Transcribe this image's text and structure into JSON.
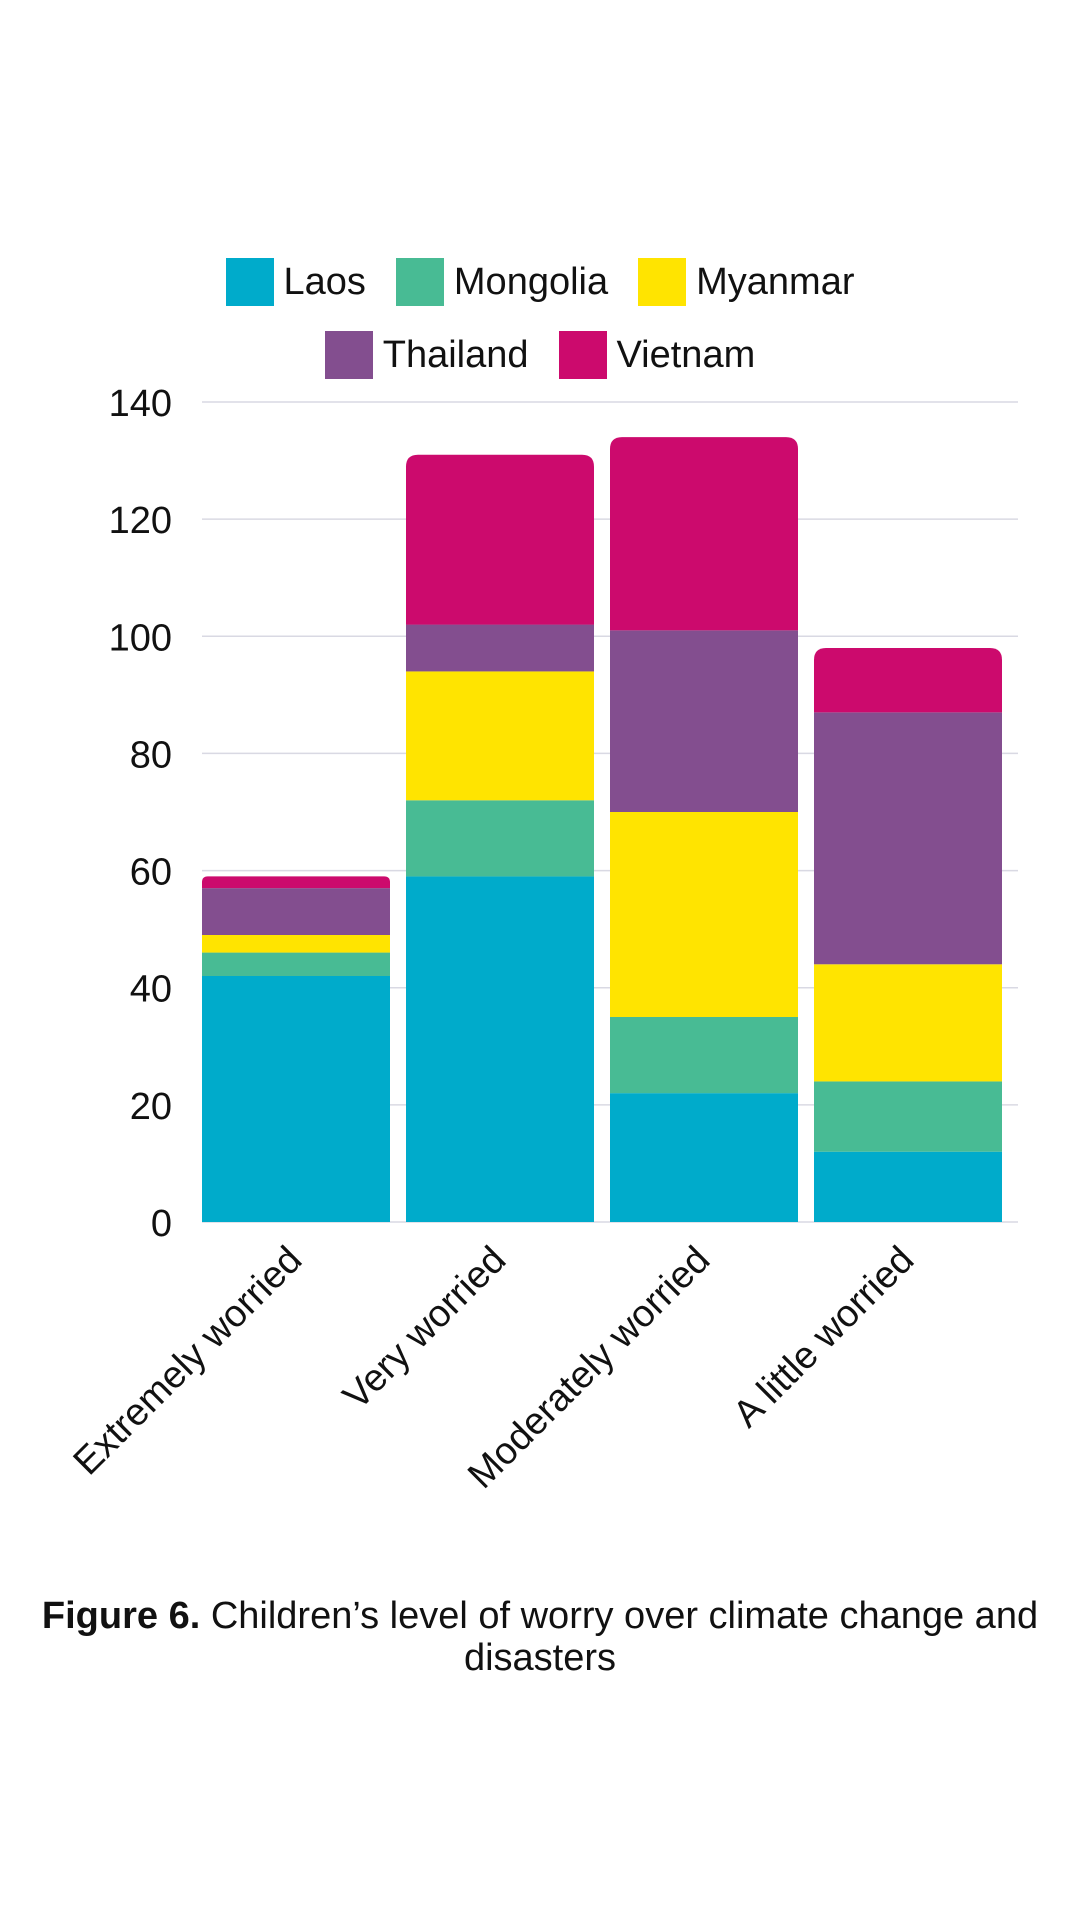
{
  "chart_data": {
    "type": "bar",
    "stacked": true,
    "categories": [
      "Extremely worried",
      "Very worried",
      "Moderately worried",
      "A little worried"
    ],
    "series": [
      {
        "name": "Laos",
        "color": "#00ABCB",
        "values": [
          42,
          59,
          22,
          12
        ]
      },
      {
        "name": "Mongolia",
        "color": "#48BB94",
        "values": [
          4,
          13,
          13,
          12
        ]
      },
      {
        "name": "Myanmar",
        "color": "#FFE400",
        "values": [
          3,
          22,
          35,
          20
        ]
      },
      {
        "name": "Thailand",
        "color": "#834E8F",
        "values": [
          8,
          8,
          31,
          43
        ]
      },
      {
        "name": "Vietnam",
        "color": "#CC0A6D",
        "values": [
          2,
          29,
          33,
          11
        ]
      }
    ],
    "ylim": [
      0,
      140
    ],
    "yticks": [
      0,
      20,
      40,
      60,
      80,
      100,
      120,
      140
    ],
    "grid": true,
    "legend_position": "top-center",
    "xlabel": "",
    "ylabel": ""
  },
  "legend": {
    "row1": [
      {
        "label": "Laos",
        "color": "#00ABCB"
      },
      {
        "label": "Mongolia",
        "color": "#48BB94"
      },
      {
        "label": "Myanmar",
        "color": "#FFE400"
      }
    ],
    "row2": [
      {
        "label": "Thailand",
        "color": "#834E8F"
      },
      {
        "label": "Vietnam",
        "color": "#CC0A6D"
      }
    ]
  },
  "caption": {
    "prefix": "Figure 6.",
    "text": " Children’s level of worry over climate change and disasters"
  }
}
